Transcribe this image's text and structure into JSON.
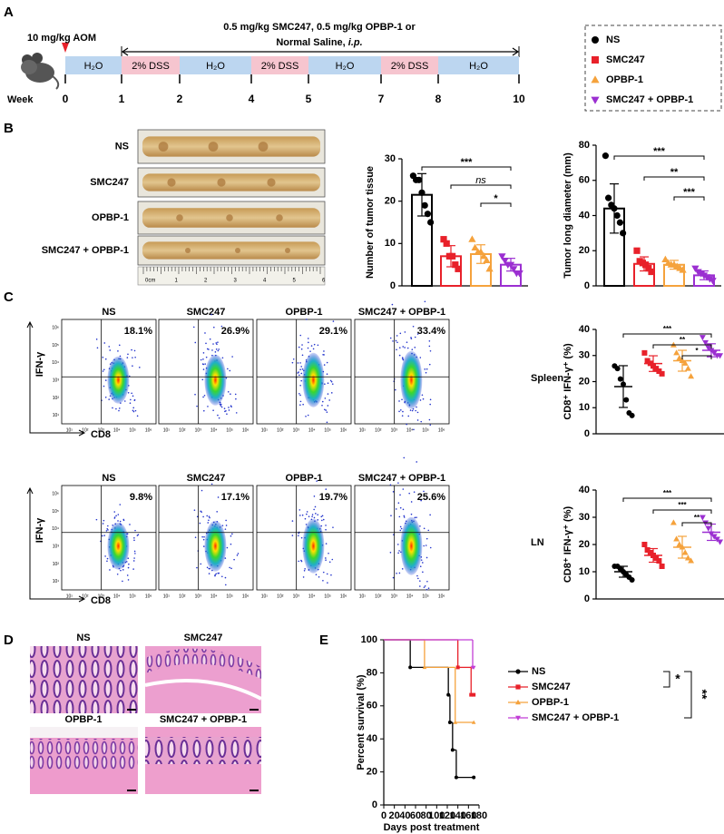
{
  "panel_labels": [
    "A",
    "B",
    "C",
    "D",
    "E"
  ],
  "timeline": {
    "dose": "10 mg/kg AOM",
    "treatment_line1": "0.5 mg/kg SMC247, 0.5 mg/kg OPBP-1 or",
    "treatment_line2": "Normal Saline, ",
    "route": "i.p.",
    "week_label": "Week",
    "weeks": [
      "0",
      "1",
      "2",
      "4",
      "5",
      "7",
      "8",
      "10"
    ],
    "segments": [
      "H₂O",
      "2% DSS",
      "H₂O",
      "2% DSS",
      "H₂O",
      "2% DSS",
      "H₂O"
    ],
    "segment_colors": [
      "#bcd6f0",
      "#f6c5cf",
      "#bcd6f0",
      "#f6c5cf",
      "#bcd6f0",
      "#f6c5cf",
      "#bcd6f0"
    ]
  },
  "legend": {
    "items": [
      {
        "name": "NS",
        "color": "#000000",
        "marker": "circle"
      },
      {
        "name": "SMC247",
        "color": "#e8212a",
        "marker": "square"
      },
      {
        "name": "OPBP-1",
        "color": "#f5a23c",
        "marker": "triangle"
      },
      {
        "name": "SMC247 + OPBP-1",
        "color": "#9b2fd1",
        "marker": "triangle-down"
      }
    ]
  },
  "colon": {
    "labels": [
      "NS",
      "SMC247",
      "OPBP-1",
      "SMC247 + OPBP-1"
    ],
    "ruler": [
      "0cm",
      "1",
      "2",
      "3",
      "4",
      "5",
      "6"
    ]
  },
  "flow": {
    "ylabel": "IFN-γ",
    "xlabel": "CD8",
    "ticks": [
      "10¹",
      "10²",
      "10³",
      "10⁴",
      "10⁵",
      "10⁶"
    ],
    "rows": [
      {
        "tissue": "Spleen",
        "titles": [
          "NS",
          "SMC247",
          "OPBP-1",
          "SMC247 + OPBP-1"
        ],
        "percentages": [
          "18.1%",
          "26.9%",
          "29.1%",
          "33.4%"
        ]
      },
      {
        "tissue": "LN",
        "titles": [
          "NS",
          "SMC247",
          "OPBP-1",
          "SMC247 + OPBP-1"
        ],
        "percentages": [
          "9.8%",
          "17.1%",
          "19.7%",
          "25.6%"
        ]
      }
    ]
  },
  "histology": {
    "titles": [
      "NS",
      "SMC247",
      "OPBP-1",
      "SMC247 + OPBP-1"
    ]
  },
  "chart_data": [
    {
      "type": "bar",
      "ylabel": "Number of  tumor tissue",
      "ylim": [
        0,
        30
      ],
      "yticks": [
        0,
        10,
        20,
        30
      ],
      "values": [
        21.5,
        7,
        7.5,
        5
      ],
      "errors": [
        5,
        2.5,
        2.2,
        1.5
      ],
      "points": [
        [
          26,
          25,
          25,
          22,
          19,
          17,
          15
        ],
        [
          11,
          10,
          7,
          7,
          5,
          4
        ],
        [
          11,
          9,
          8,
          8,
          7,
          6,
          4
        ],
        [
          7,
          6,
          5,
          5,
          4,
          3,
          3
        ]
      ],
      "significance": [
        "***",
        "ns",
        "*"
      ]
    },
    {
      "type": "bar",
      "ylabel": "Tumor long diameter (mm)",
      "ylim": [
        0,
        80
      ],
      "yticks": [
        0,
        20,
        40,
        60,
        80
      ],
      "values": [
        44,
        12.5,
        12,
        6
      ],
      "errors": [
        14,
        4,
        2.5,
        2.5
      ],
      "points": [
        [
          74,
          50,
          46,
          44,
          40,
          36,
          30
        ],
        [
          20,
          14,
          13,
          12,
          10,
          8
        ],
        [
          15,
          13,
          12,
          12,
          11,
          10,
          9
        ],
        [
          10,
          8,
          7,
          6,
          5,
          4,
          3
        ]
      ],
      "significance": [
        "***",
        "**",
        "***"
      ]
    },
    {
      "type": "dot",
      "ylabel": "CD8⁺ IFN-γ⁺ (%)",
      "ylim": [
        0,
        40
      ],
      "yticks": [
        0,
        10,
        20,
        30,
        40
      ],
      "values": [
        18.1,
        26.9,
        28,
        32
      ],
      "errors": [
        8,
        3,
        4,
        2.5
      ],
      "points": [
        [
          26,
          25,
          21,
          19,
          13,
          8,
          7
        ],
        [
          31,
          28,
          27,
          26,
          25,
          24,
          23
        ],
        [
          34,
          31,
          29,
          28,
          27,
          25,
          22
        ],
        [
          37,
          35,
          33,
          32,
          31,
          30,
          30
        ]
      ],
      "significance": [
        "***",
        "**",
        "*"
      ]
    },
    {
      "type": "dot",
      "ylabel": "CD8⁺ IFN-γ⁺ (%)",
      "ylim": [
        0,
        40
      ],
      "yticks": [
        0,
        10,
        20,
        30,
        40
      ],
      "values": [
        10,
        16,
        19,
        24.5
      ],
      "errors": [
        2,
        2.5,
        4,
        3
      ],
      "points": [
        [
          12,
          12,
          11,
          10,
          9,
          8,
          7
        ],
        [
          20,
          18,
          17,
          16,
          15,
          14,
          12
        ],
        [
          28,
          22,
          20,
          19,
          17,
          15,
          14
        ],
        [
          30,
          28,
          26,
          24,
          23,
          22,
          21
        ]
      ],
      "significance": [
        "***",
        "***",
        "**"
      ]
    },
    {
      "type": "step",
      "xlabel": "Days post treatment",
      "ylabel": "Percent survival (%)",
      "xlim": [
        0,
        180
      ],
      "xticks": [
        0,
        20,
        40,
        60,
        80,
        100,
        120,
        140,
        160,
        180
      ],
      "ylim": [
        0,
        100
      ],
      "yticks": [
        0,
        20,
        40,
        60,
        80,
        100
      ],
      "series": [
        {
          "name": "NS",
          "color": "#000000",
          "marker": "circle",
          "x": [
            0,
            50,
            122,
            125,
            130,
            137,
            170
          ],
          "values": [
            100,
            83.3,
            66.7,
            50,
            33.3,
            16.7,
            16.7
          ]
        },
        {
          "name": "SMC247",
          "color": "#e8212a",
          "marker": "square",
          "x": [
            0,
            140,
            165,
            170
          ],
          "values": [
            100,
            83.3,
            66.7,
            66.7
          ]
        },
        {
          "name": "OPBP-1",
          "color": "#f5a23c",
          "marker": "triangle",
          "x": [
            0,
            77,
            135,
            170
          ],
          "values": [
            100,
            83.3,
            50,
            50
          ]
        },
        {
          "name": "SMC247 + OPBP-1",
          "color": "#c23fd6",
          "marker": "triangle-down",
          "x": [
            0,
            168,
            170
          ],
          "values": [
            100,
            83.3,
            83.3
          ]
        }
      ],
      "significance": [
        "*",
        "**"
      ]
    }
  ]
}
